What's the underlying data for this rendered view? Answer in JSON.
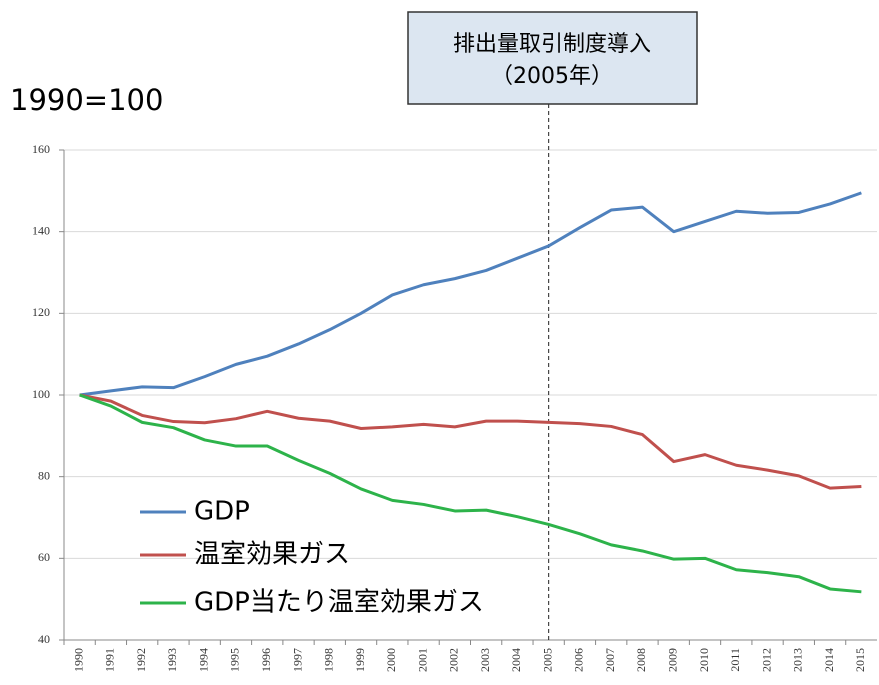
{
  "chart_data": {
    "type": "line",
    "y_label": "1990=100",
    "categories": [
      "1990",
      "1991",
      "1992",
      "1993",
      "1994",
      "1995",
      "1996",
      "1997",
      "1998",
      "1999",
      "2000",
      "2001",
      "2002",
      "2003",
      "2004",
      "2005",
      "2006",
      "2007",
      "2008",
      "2009",
      "2010",
      "2011",
      "2012",
      "2013",
      "2014",
      "2015"
    ],
    "series": [
      {
        "name": "GDP",
        "color": "#4f81bd",
        "values": [
          100,
          101,
          102,
          101.8,
          104.5,
          107.5,
          109.5,
          112.5,
          116,
          120,
          124.5,
          127,
          128.5,
          130.5,
          133.5,
          136.5,
          141,
          145.3,
          146,
          140,
          142.5,
          145,
          144.5,
          144.7,
          146.8,
          149.5
        ]
      },
      {
        "name": "温室効果ガス",
        "color": "#c0504d",
        "values": [
          100,
          98.5,
          95,
          93.5,
          93.2,
          94.2,
          96,
          94.3,
          93.6,
          91.8,
          92.2,
          92.8,
          92.2,
          93.6,
          93.6,
          93.3,
          93,
          92.3,
          90.3,
          83.7,
          85.4,
          82.8,
          81.6,
          80.2,
          77.2,
          77.6
        ]
      },
      {
        "name": "GDP当たり温室効果ガス",
        "color": "#2db34a",
        "values": [
          100,
          97.3,
          93.3,
          92,
          89,
          87.5,
          87.5,
          84,
          80.8,
          77,
          74.2,
          73.2,
          71.6,
          71.8,
          70.2,
          68.3,
          66,
          63.3,
          61.8,
          59.8,
          60,
          57.2,
          56.5,
          55.5,
          52.5,
          51.8
        ]
      }
    ],
    "annotation": {
      "lines": [
        "排出量取引制度導入",
        "（2005年）"
      ],
      "at": "2005"
    },
    "ylim": [
      40,
      160
    ],
    "yticks": [
      40,
      60,
      80,
      100,
      120,
      140,
      160
    ],
    "grid": true
  }
}
